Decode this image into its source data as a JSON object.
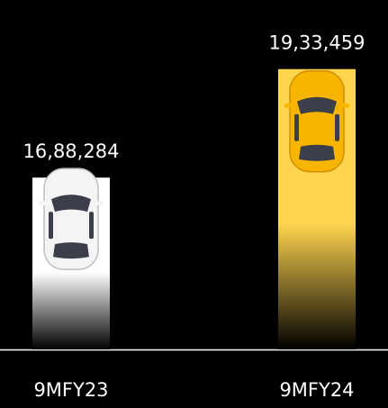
{
  "chart_data": {
    "type": "bar",
    "categories": [
      "9MFY23",
      "9MFY24"
    ],
    "values": [
      1688284,
      1933459
    ],
    "value_labels": [
      "16,88,284",
      "19,33,459"
    ],
    "colors": [
      "#ffffff",
      "#ffd54f"
    ],
    "ylim": [
      1300000,
      2000000
    ]
  }
}
